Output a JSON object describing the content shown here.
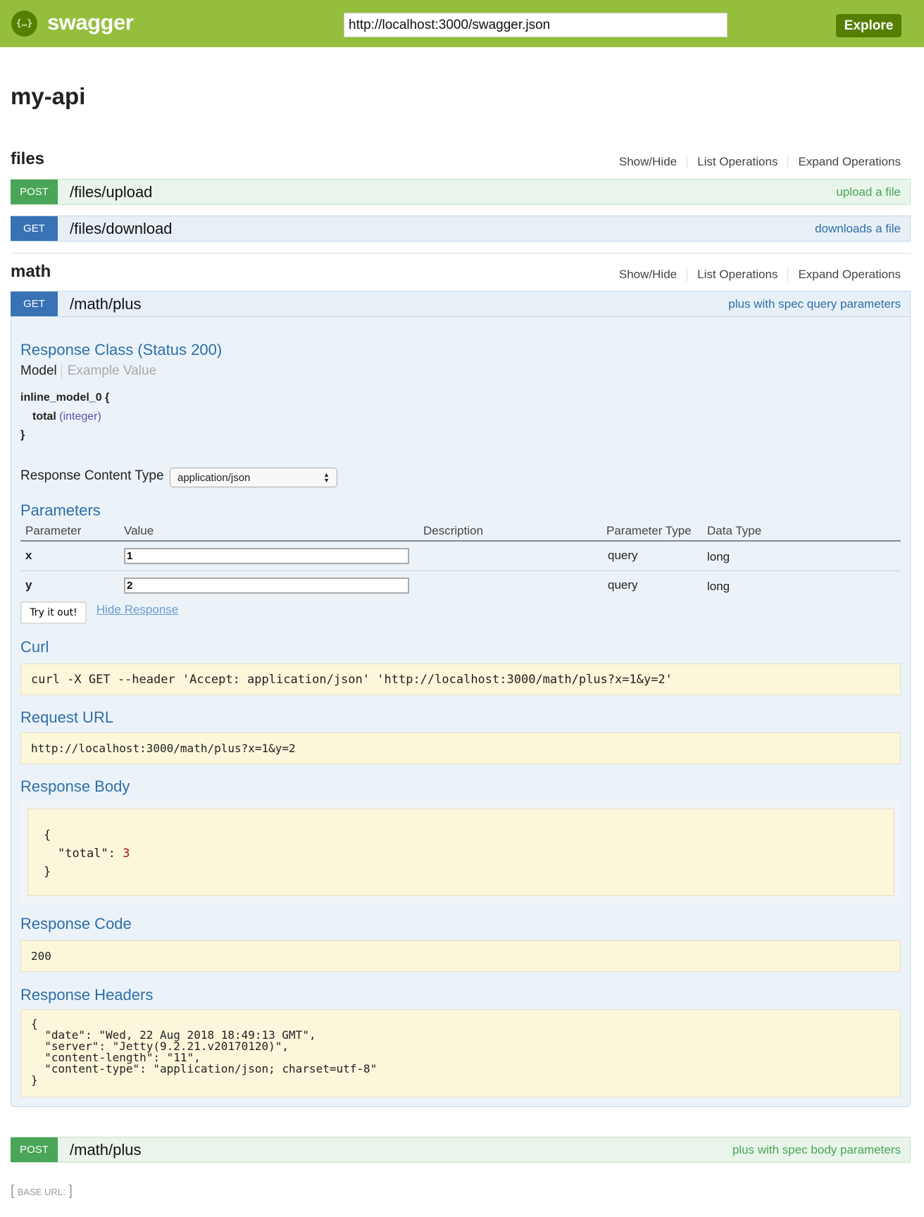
{
  "header": {
    "brand": "swagger",
    "logo_glyph": "{…}",
    "url_value": "http://localhost:3000/swagger.json",
    "explore_label": "Explore"
  },
  "title": "my-api",
  "section_links": {
    "show_hide": "Show/Hide",
    "list": "List Operations",
    "expand": "Expand Operations"
  },
  "sections": [
    {
      "name": "files",
      "operations": [
        {
          "method": "POST",
          "path": "/files/upload",
          "summary": "upload a file"
        },
        {
          "method": "GET",
          "path": "/files/download",
          "summary": "downloads a file"
        }
      ]
    },
    {
      "name": "math",
      "operations": [
        {
          "method": "GET",
          "path": "/math/plus",
          "summary": "plus with spec query parameters"
        },
        {
          "method": "POST",
          "path": "/math/plus",
          "summary": "plus with spec body parameters"
        }
      ]
    }
  ],
  "expanded": {
    "response_class": "Response Class (Status 200)",
    "tab_model": "Model",
    "tab_example": "Example Value",
    "model_name": "inline_model_0 {",
    "model_field": "total",
    "model_type": "(integer)",
    "model_close": "}",
    "content_type_label": "Response Content Type",
    "content_type_value": "application/json",
    "parameters_title": "Parameters",
    "columns": [
      "Parameter",
      "Value",
      "Description",
      "Parameter Type",
      "Data Type"
    ],
    "params": [
      {
        "name": "x",
        "value": "1",
        "description": "",
        "type": "query",
        "data_type": "long"
      },
      {
        "name": "y",
        "value": "2",
        "description": "",
        "type": "query",
        "data_type": "long"
      }
    ],
    "try_label": "Try it out!",
    "hide_label": "Hide Response",
    "curl_title": "Curl",
    "curl": "curl -X GET --header 'Accept: application/json' 'http://localhost:3000/math/plus?x=1&y=2'",
    "request_url_title": "Request URL",
    "request_url": "http://localhost:3000/math/plus?x=1&y=2",
    "response_body_title": "Response Body",
    "body_open": "{",
    "body_key": "\"total\": ",
    "body_value": "3",
    "body_close": "}",
    "response_code_title": "Response Code",
    "response_code": "200",
    "response_headers_title": "Response Headers",
    "response_headers": "{\n  \"date\": \"Wed, 22 Aug 2018 18:49:13 GMT\",\n  \"server\": \"Jetty(9.2.21.v20170120)\",\n  \"content-length\": \"11\",\n  \"content-type\": \"application/json; charset=utf-8\"\n}"
  },
  "base_url": {
    "label": "BASE URL",
    "value": ""
  },
  "colors": {
    "header": "#94be3c",
    "post": "#49a557",
    "get": "#3872b5",
    "heading": "#2f6ea8"
  }
}
